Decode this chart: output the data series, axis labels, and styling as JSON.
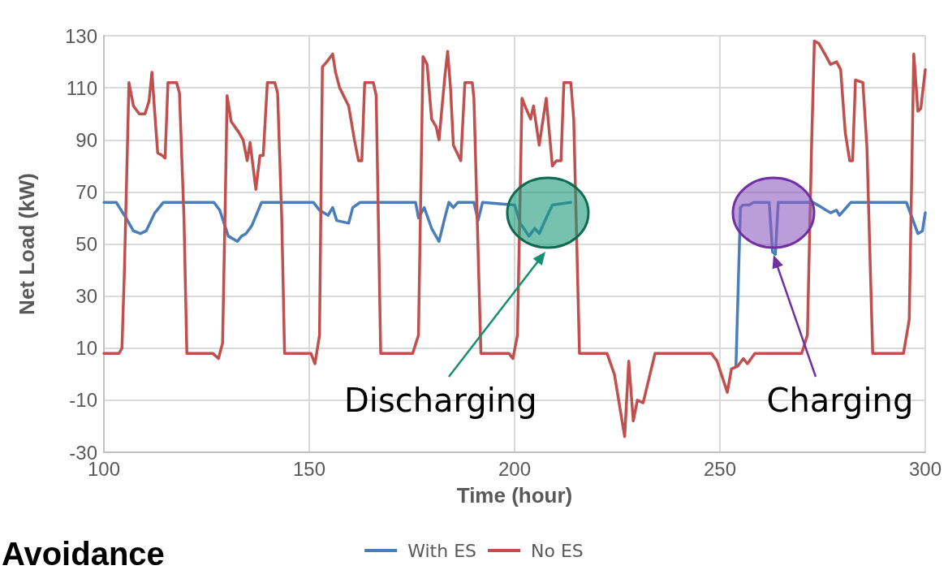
{
  "chart_data": {
    "type": "line",
    "xlabel": "Time (hour)",
    "ylabel": "Net Load (kW)",
    "xlim": [
      100,
      300
    ],
    "xticks": [
      100,
      150,
      200,
      250,
      300
    ],
    "ylim": [
      -30,
      130
    ],
    "yticks": [
      -30,
      -10,
      10,
      30,
      50,
      70,
      90,
      110,
      130
    ],
    "grid": true,
    "legend": "bottom",
    "marker": "none",
    "line_style": "solid",
    "annotations": [
      "Discharging",
      "Charging",
      "Avoidance"
    ],
    "series": [
      {
        "name": "With ES",
        "color": "#4a7ebb",
        "x": [
          100,
          103,
          105,
          107.2,
          108.9,
          110.3,
          112.4,
          114.5,
          126.8,
          128.2,
          130.3,
          132.5,
          133.5,
          134.6,
          136,
          138.4,
          151,
          152.5,
          154.6,
          155.7,
          156.7,
          159.6,
          160.6,
          162.4,
          175.9,
          176.6,
          178,
          179.8,
          181.6,
          183,
          184,
          185.1,
          186.2,
          190.1,
          191.1,
          192.2,
          200,
          201.4,
          203.5,
          204.9,
          206,
          207.7,
          209.2,
          213.7,
          214.4,
          253.9,
          255,
          255.7,
          257.1,
          258.2,
          262,
          262.8,
          263.5,
          264.2,
          272.7,
          274.8,
          276.9,
          278.4,
          279.1,
          281.9,
          295.4,
          296.8,
          298.2,
          299.3,
          300
        ],
        "values": [
          66,
          66,
          61,
          55,
          54,
          55,
          62,
          66,
          66,
          63,
          53,
          51,
          53,
          54,
          57,
          66,
          66,
          63,
          61,
          64,
          59,
          58,
          64,
          66,
          66,
          60,
          64,
          56,
          51,
          60,
          66,
          64,
          66,
          66,
          59,
          66,
          65,
          58,
          53,
          56,
          54,
          60,
          65,
          66,
          null,
          3,
          64,
          65,
          65,
          66,
          66,
          47,
          46,
          66,
          66,
          64,
          62,
          63,
          61,
          66,
          66,
          60,
          54,
          55,
          62
        ]
      },
      {
        "name": "No ES",
        "color": "#c0504d",
        "x": [
          100,
          103.7,
          104.4,
          105,
          106.1,
          107.2,
          108.6,
          110,
          111,
          111.7,
          112.4,
          113.1,
          114.2,
          114.9,
          115.6,
          117.7,
          118.4,
          119.5,
          120.2,
          126.5,
          127.9,
          128.9,
          129.6,
          130,
          131,
          132.8,
          133.9,
          134.9,
          135.6,
          137,
          138,
          138.8,
          139.8,
          141.6,
          142.3,
          143.3,
          144,
          150.4,
          151.4,
          152.5,
          153.2,
          154.3,
          155.7,
          156.4,
          157.4,
          159.6,
          161,
          162,
          162.8,
          163.5,
          165.6,
          166.3,
          167.4,
          175.2,
          176.6,
          177.7,
          178.7,
          179.8,
          180.9,
          181.6,
          183,
          183.7,
          184.4,
          185.1,
          186.9,
          187.9,
          189.7,
          190.1,
          191.8,
          198.6,
          199.6,
          200.7,
          201.8,
          202.8,
          203.9,
          204.6,
          206,
          207.7,
          209.2,
          210.2,
          211.3,
          212,
          213.7,
          214.4,
          215.8,
          222.5,
          224.3,
          226.8,
          227.8,
          228.9,
          229.9,
          231.3,
          234.2,
          247.9,
          249.3,
          251.8,
          252.8,
          254.3,
          255.7,
          256.7,
          258.5,
          269.9,
          271.3,
          272.3,
          273,
          274.1,
          275.9,
          276.9,
          278.4,
          279.4,
          280.5,
          281.6,
          282.3,
          283,
          284.8,
          285.8,
          287.2,
          294.7,
          296.1,
          297.2,
          298.2,
          298.9,
          300
        ],
        "values": [
          8,
          8,
          10,
          40,
          112,
          103,
          100,
          100,
          105,
          116,
          100,
          85,
          84,
          83,
          112,
          112,
          108,
          60,
          8,
          8,
          6,
          12,
          70,
          107,
          97,
          93,
          90,
          82,
          89,
          71,
          84,
          84,
          112,
          112,
          108,
          60,
          8,
          8,
          4,
          15,
          118,
          120,
          123,
          116,
          110,
          103,
          90,
          82,
          82,
          112,
          112,
          107,
          8,
          8,
          15,
          122,
          119,
          98,
          95,
          90,
          114,
          124,
          110,
          88,
          82,
          112,
          112,
          106,
          8,
          8,
          6,
          15,
          106,
          102,
          98,
          103,
          88,
          106,
          80,
          82,
          82,
          112,
          112,
          98,
          8,
          8,
          0,
          -24,
          5,
          -18,
          -10,
          -11,
          8,
          8,
          5,
          -7,
          2,
          3,
          6,
          4,
          8,
          8,
          15,
          87,
          128,
          127,
          122,
          119,
          120,
          117,
          93,
          82,
          82,
          113,
          112,
          87,
          8,
          8,
          21,
          123,
          101,
          102,
          117
        ]
      }
    ]
  }
}
